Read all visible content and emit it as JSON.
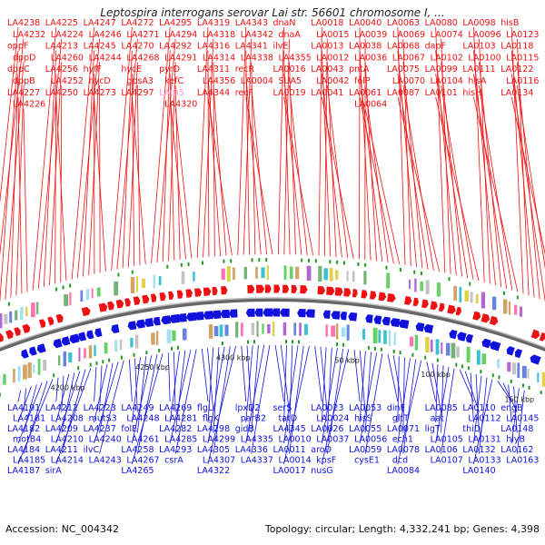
{
  "title": "Leptospira interrogans serovar Lai str. 56601 chromosome I, ...",
  "footer": {
    "accession": "Accession: NC_004342",
    "summary": "Topology: circular; Length: 4,332,241 bp; Genes: 4,398"
  },
  "colors": {
    "forward": "#ee1111",
    "reverse": "#1111dd",
    "highlight_label": "#ff99cc",
    "backbone": "#888888"
  },
  "kbp_ticks": [
    "4200 kbp",
    "4250 kbp",
    "4300 kbp",
    "50 kbp",
    "100 kbp",
    "150 kbp"
  ],
  "forward_genes": [
    {
      "label": "LA4238"
    },
    {
      "label": "LA4232"
    },
    {
      "label": "oppF"
    },
    {
      "label": "dppD"
    },
    {
      "label": "dppC"
    },
    {
      "label": "dppB"
    },
    {
      "label": "LA4227"
    },
    {
      "label": "LA4226"
    },
    {
      "label": "LA4225"
    },
    {
      "label": "LA4224"
    },
    {
      "label": "LA4213"
    },
    {
      "label": "LA4260"
    },
    {
      "label": "LA4256"
    },
    {
      "label": "LA4252"
    },
    {
      "label": "LA4250"
    },
    {
      "label": "LA4247"
    },
    {
      "label": "LA4246"
    },
    {
      "label": "LA4245"
    },
    {
      "label": "LA4244"
    },
    {
      "label": "hyfF"
    },
    {
      "label": "hycD"
    },
    {
      "label": "LA4273"
    },
    {
      "label": "LA4272"
    },
    {
      "label": "LA4271"
    },
    {
      "label": "LA4270"
    },
    {
      "label": "LA4268"
    },
    {
      "label": "hycE"
    },
    {
      "label": "gpsA3"
    },
    {
      "label": "LA4297"
    },
    {
      "label": "LA4295"
    },
    {
      "label": "LA4294"
    },
    {
      "label": "LA4292"
    },
    {
      "label": "LA4291"
    },
    {
      "label": "pyrD"
    },
    {
      "label": "kefC"
    },
    {
      "label": "LAt35"
    },
    {
      "label": "LA4320"
    },
    {
      "label": "LA4319"
    },
    {
      "label": "LA4318"
    },
    {
      "label": "LA4316"
    },
    {
      "label": "LA4314"
    },
    {
      "label": "LA4311"
    },
    {
      "label": "LA4356"
    },
    {
      "label": "LA4344"
    },
    {
      "label": "LA4343"
    },
    {
      "label": "LA4342"
    },
    {
      "label": "LA4341"
    },
    {
      "label": "LA4338"
    },
    {
      "label": "recR"
    },
    {
      "label": "LA0004"
    },
    {
      "label": "recF"
    },
    {
      "label": "dnaN"
    },
    {
      "label": "dnaA"
    },
    {
      "label": "ilvE"
    },
    {
      "label": "LA4355"
    },
    {
      "label": "LA0016"
    },
    {
      "label": "SUA5"
    },
    {
      "label": "LA0019"
    },
    {
      "label": "LA0018"
    },
    {
      "label": "LA0015"
    },
    {
      "label": "LA0013"
    },
    {
      "label": "LA0012"
    },
    {
      "label": "LA0043"
    },
    {
      "label": "LA0042"
    },
    {
      "label": "LA0041"
    },
    {
      "label": "LA0040"
    },
    {
      "label": "LA0039"
    },
    {
      "label": "LA0038"
    },
    {
      "label": "LA0036"
    },
    {
      "label": "pntA"
    },
    {
      "label": "folP"
    },
    {
      "label": "LA0061"
    },
    {
      "label": "LA0064"
    },
    {
      "label": "LA0063"
    },
    {
      "label": "LA0069"
    },
    {
      "label": "LA0068"
    },
    {
      "label": "LA0067"
    },
    {
      "label": "LA0075"
    },
    {
      "label": "LA0070"
    },
    {
      "label": "LA0087"
    },
    {
      "label": "LA0080"
    },
    {
      "label": "LA0074"
    },
    {
      "label": "dapF"
    },
    {
      "label": "LA0102"
    },
    {
      "label": "LA0099"
    },
    {
      "label": "LA0104"
    },
    {
      "label": "LA0101"
    },
    {
      "label": "LA0098"
    },
    {
      "label": "LA0096"
    },
    {
      "label": "LA0103"
    },
    {
      "label": "LA0100"
    },
    {
      "label": "LA0111"
    },
    {
      "label": "hisA"
    },
    {
      "label": "hisH"
    },
    {
      "label": "hisB"
    },
    {
      "label": "LA0123"
    },
    {
      "label": "LA0118"
    },
    {
      "label": "LA0115"
    },
    {
      "label": "LA0122"
    },
    {
      "label": "LA0116"
    },
    {
      "label": "LA0134"
    }
  ],
  "reverse_genes": [
    {
      "label": "LA4191"
    },
    {
      "label": "LA4181"
    },
    {
      "label": "LA4182"
    },
    {
      "label": "motB4"
    },
    {
      "label": "LA4184"
    },
    {
      "label": "LA4185"
    },
    {
      "label": "LA4187"
    },
    {
      "label": "LA4212"
    },
    {
      "label": "LA4208"
    },
    {
      "label": "LA4209"
    },
    {
      "label": "LA4210"
    },
    {
      "label": "LA4211"
    },
    {
      "label": "LA4214"
    },
    {
      "label": "sirA"
    },
    {
      "label": "LA4223"
    },
    {
      "label": "mutS3"
    },
    {
      "label": "LA4237"
    },
    {
      "label": "LA4240"
    },
    {
      "label": "ilvC"
    },
    {
      "label": "LA4243"
    },
    {
      "label": "LA4249"
    },
    {
      "label": "LA4248"
    },
    {
      "label": "folE"
    },
    {
      "label": "LA4261"
    },
    {
      "label": "LA4258"
    },
    {
      "label": "LA4267"
    },
    {
      "label": "LA4265"
    },
    {
      "label": "LA4269"
    },
    {
      "label": "LA4281"
    },
    {
      "label": "LA4282"
    },
    {
      "label": "LA4285"
    },
    {
      "label": "LA4293"
    },
    {
      "label": "csrA"
    },
    {
      "label": "flgL"
    },
    {
      "label": "flgK"
    },
    {
      "label": "LA4298"
    },
    {
      "label": "LA4299"
    },
    {
      "label": "LA4305"
    },
    {
      "label": "LA4307"
    },
    {
      "label": "LA4322"
    },
    {
      "label": "lpxD2"
    },
    {
      "label": "parB2"
    },
    {
      "label": "gidB"
    },
    {
      "label": "LA4335"
    },
    {
      "label": "LA4336"
    },
    {
      "label": "LA4337"
    },
    {
      "label": "serS"
    },
    {
      "label": "tatD"
    },
    {
      "label": "LA4345"
    },
    {
      "label": "LA0010"
    },
    {
      "label": "LA0011"
    },
    {
      "label": "LA0014"
    },
    {
      "label": "LA0017"
    },
    {
      "label": "LA0023"
    },
    {
      "label": "LA0024"
    },
    {
      "label": "LA0026"
    },
    {
      "label": "LA0037"
    },
    {
      "label": "aroD"
    },
    {
      "label": "kpsF"
    },
    {
      "label": "nusG"
    },
    {
      "label": "LA0053"
    },
    {
      "label": "hisS"
    },
    {
      "label": "LA0055"
    },
    {
      "label": "LA0056"
    },
    {
      "label": "LA0059"
    },
    {
      "label": "cysE1"
    },
    {
      "label": "dinF"
    },
    {
      "label": "gltT"
    },
    {
      "label": "LA0071"
    },
    {
      "label": "ech1"
    },
    {
      "label": "LA0078"
    },
    {
      "label": "dcd"
    },
    {
      "label": "LA0084"
    },
    {
      "label": "LA0085"
    },
    {
      "label": "aat"
    },
    {
      "label": "ligT"
    },
    {
      "label": "LA0105"
    },
    {
      "label": "LA0106"
    },
    {
      "label": "LA0107"
    },
    {
      "label": "LA0110"
    },
    {
      "label": "LA0112"
    },
    {
      "label": "thiD"
    },
    {
      "label": "LA0131"
    },
    {
      "label": "LA0132"
    },
    {
      "label": "LA0133"
    },
    {
      "label": "LA0140"
    },
    {
      "label": "engB"
    },
    {
      "label": "LA0145"
    },
    {
      "label": "LA0148"
    },
    {
      "label": "hlyB"
    },
    {
      "label": "LA0162"
    },
    {
      "label": "LA0163"
    }
  ]
}
